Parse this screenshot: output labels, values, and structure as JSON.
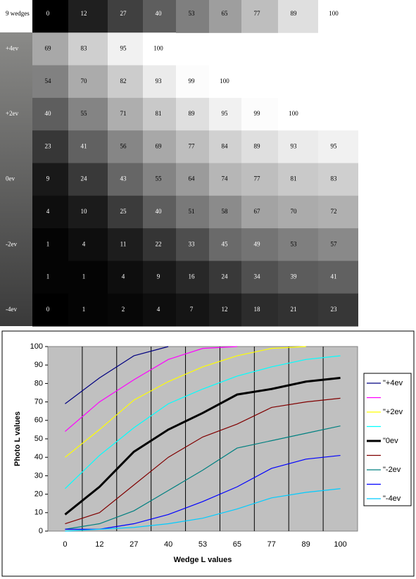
{
  "wedges": {
    "rows": [
      {
        "label": "9 wedges",
        "values": [
          0,
          12,
          27,
          40,
          53,
          65,
          77,
          89,
          100
        ]
      },
      {
        "label": "+4ev",
        "values": [
          69,
          83,
          95,
          100
        ]
      },
      {
        "label": null,
        "values": [
          54,
          70,
          82,
          93,
          99,
          100
        ]
      },
      {
        "label": "+2ev",
        "values": [
          40,
          55,
          71,
          81,
          89,
          95,
          99,
          100
        ]
      },
      {
        "label": null,
        "values": [
          23,
          41,
          56,
          69,
          77,
          84,
          89,
          93,
          95
        ]
      },
      {
        "label": "0ev",
        "values": [
          9,
          24,
          43,
          55,
          64,
          74,
          77,
          81,
          83
        ]
      },
      {
        "label": null,
        "values": [
          4,
          10,
          25,
          40,
          51,
          58,
          67,
          70,
          72
        ]
      },
      {
        "label": "-2ev",
        "values": [
          1,
          4,
          11,
          22,
          33,
          45,
          49,
          53,
          57
        ]
      },
      {
        "label": null,
        "values": [
          1,
          1,
          4,
          9,
          16,
          24,
          34,
          39,
          41
        ]
      },
      {
        "label": "-4ev",
        "values": [
          0,
          1,
          2,
          4,
          7,
          12,
          18,
          21,
          23
        ]
      }
    ]
  },
  "chart_data": {
    "type": "line",
    "x_label": "Wedge L values",
    "y_label": "Photo L values",
    "categories": [
      0,
      12,
      27,
      40,
      53,
      65,
      77,
      89,
      100
    ],
    "ylim": [
      0,
      100
    ],
    "yticks": [
      0,
      10,
      20,
      30,
      40,
      50,
      60,
      70,
      80,
      90,
      100
    ],
    "legend": "right",
    "series": [
      {
        "name": "\"+4ev",
        "color": "#000080",
        "values": [
          69,
          83,
          95,
          100,
          null,
          null,
          null,
          null,
          null
        ]
      },
      {
        "name": null,
        "color": "#ff00ff",
        "values": [
          54,
          70,
          82,
          93,
          99,
          100,
          null,
          null,
          null
        ]
      },
      {
        "name": "\"+2ev",
        "color": "#ffff00",
        "values": [
          40,
          55,
          71,
          81,
          89,
          95,
          99,
          100,
          null
        ]
      },
      {
        "name": null,
        "color": "#00ffff",
        "values": [
          23,
          41,
          56,
          69,
          77,
          84,
          89,
          93,
          95
        ]
      },
      {
        "name": "\"0ev",
        "color": "#000000",
        "values": [
          9,
          24,
          43,
          55,
          64,
          74,
          77,
          81,
          83
        ]
      },
      {
        "name": null,
        "color": "#800000",
        "values": [
          4,
          10,
          25,
          40,
          51,
          58,
          67,
          70,
          72
        ]
      },
      {
        "name": "\"-2ev",
        "color": "#008080",
        "values": [
          1,
          4,
          11,
          22,
          33,
          45,
          49,
          53,
          57
        ]
      },
      {
        "name": null,
        "color": "#0000ff",
        "values": [
          1,
          1,
          4,
          9,
          16,
          24,
          34,
          39,
          41
        ]
      },
      {
        "name": "\"-4ev",
        "color": "#00ccff",
        "values": [
          0,
          1,
          2,
          4,
          7,
          12,
          18,
          21,
          23
        ]
      }
    ]
  }
}
